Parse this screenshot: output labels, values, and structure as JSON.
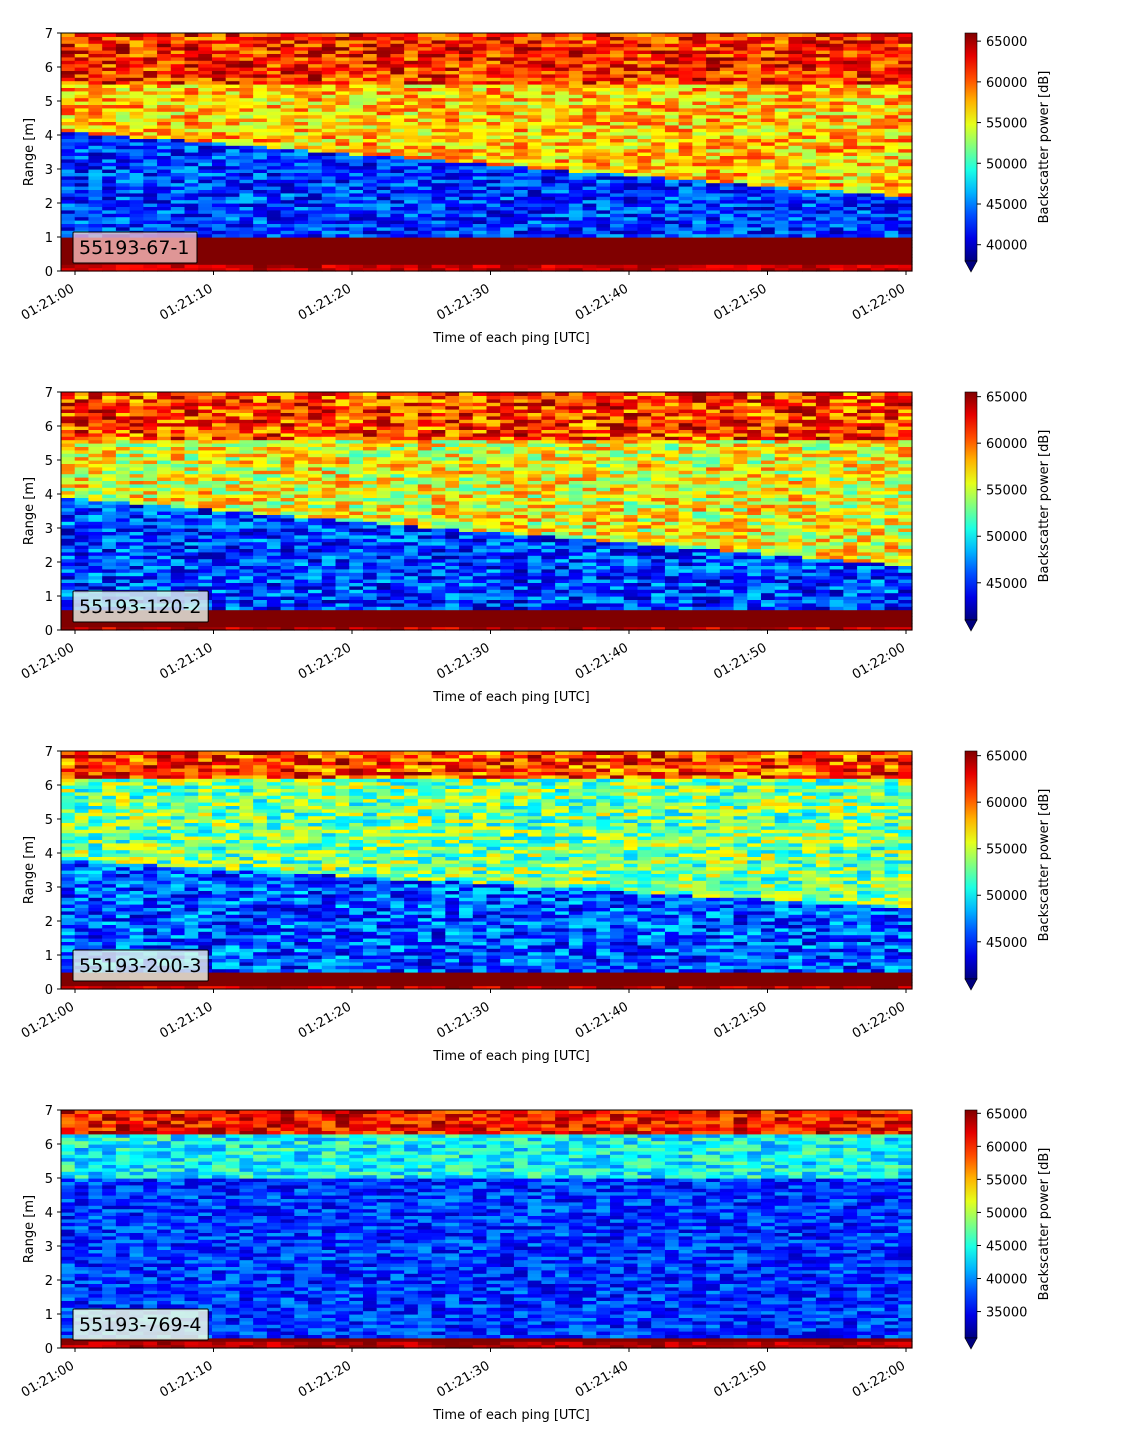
{
  "chart_data": [
    {
      "type": "heatmap",
      "label": "55193-67-1",
      "xlabel": "Time of each ping [UTC]",
      "ylabel": "Range [m]",
      "x_ticks": [
        "01:21:00",
        "01:21:10",
        "01:21:20",
        "01:21:30",
        "01:21:40",
        "01:21:50",
        "01:22:00"
      ],
      "y_ticks": [
        "0",
        "1",
        "2",
        "3",
        "4",
        "5",
        "6",
        "7"
      ],
      "ylim": [
        0,
        7
      ],
      "colorbar_label": "Backscatter power [dB]",
      "colorbar_ticks": [
        "40000",
        "45000",
        "50000",
        "55000",
        "60000",
        "65000"
      ],
      "colorbar_range": [
        38000,
        66000
      ],
      "colormap": "jet",
      "profile": {
        "bottom_band": [
          0.2,
          1.0
        ],
        "water_col_low": 43000,
        "water_col_high": 57000,
        "surface_band": [
          5.5,
          7.0
        ],
        "boundary_start": 4.1,
        "boundary_end": 2.2
      }
    },
    {
      "type": "heatmap",
      "label": "55193-120-2",
      "xlabel": "Time of each ping [UTC]",
      "ylabel": "Range [m]",
      "x_ticks": [
        "01:21:00",
        "01:21:10",
        "01:21:20",
        "01:21:30",
        "01:21:40",
        "01:21:50",
        "01:22:00"
      ],
      "y_ticks": [
        "0",
        "1",
        "2",
        "3",
        "4",
        "5",
        "6",
        "7"
      ],
      "ylim": [
        0,
        7
      ],
      "colorbar_label": "Backscatter power [dB]",
      "colorbar_ticks": [
        "45000",
        "50000",
        "55000",
        "60000",
        "65000"
      ],
      "colorbar_range": [
        41000,
        65500
      ],
      "colormap": "jet",
      "profile": {
        "bottom_band": [
          0.1,
          0.6
        ],
        "water_col_low": 45500,
        "water_col_high": 56000,
        "surface_band": [
          5.6,
          7.0
        ],
        "boundary_start": 3.9,
        "boundary_end": 1.9
      }
    },
    {
      "type": "heatmap",
      "label": "55193-200-3",
      "xlabel": "Time of each ping [UTC]",
      "ylabel": "Range [m]",
      "x_ticks": [
        "01:21:00",
        "01:21:10",
        "01:21:20",
        "01:21:30",
        "01:21:40",
        "01:21:50",
        "01:22:00"
      ],
      "y_ticks": [
        "0",
        "1",
        "2",
        "3",
        "4",
        "5",
        "6",
        "7"
      ],
      "ylim": [
        0,
        7
      ],
      "colorbar_label": "Backscatter power [dB]",
      "colorbar_ticks": [
        "45000",
        "50000",
        "55000",
        "60000",
        "65000"
      ],
      "colorbar_range": [
        41000,
        65500
      ],
      "colormap": "jet",
      "profile": {
        "bottom_band": [
          0.1,
          0.5
        ],
        "water_col_low": 46000,
        "water_col_high": 53000,
        "surface_band": [
          6.2,
          7.0
        ],
        "boundary_start": 3.8,
        "boundary_end": 2.4
      }
    },
    {
      "type": "heatmap",
      "label": "55193-769-4",
      "xlabel": "Time of each ping [UTC]",
      "ylabel": "Range [m]",
      "x_ticks": [
        "01:21:00",
        "01:21:10",
        "01:21:20",
        "01:21:30",
        "01:21:40",
        "01:21:50",
        "01:22:00"
      ],
      "y_ticks": [
        "0",
        "1",
        "2",
        "3",
        "4",
        "5",
        "6",
        "7"
      ],
      "ylim": [
        0,
        7
      ],
      "colorbar_label": "Backscatter power [dB]",
      "colorbar_ticks": [
        "35000",
        "40000",
        "45000",
        "50000",
        "55000",
        "60000",
        "65000"
      ],
      "colorbar_range": [
        31000,
        65500
      ],
      "colormap": "jet",
      "profile": {
        "bottom_band": [
          0.2,
          0.3
        ],
        "water_col_low": 37000,
        "water_col_high": 44000,
        "surface_band": [
          6.3,
          6.8
        ],
        "boundary_start": 5.0,
        "boundary_end": 5.0
      }
    }
  ]
}
